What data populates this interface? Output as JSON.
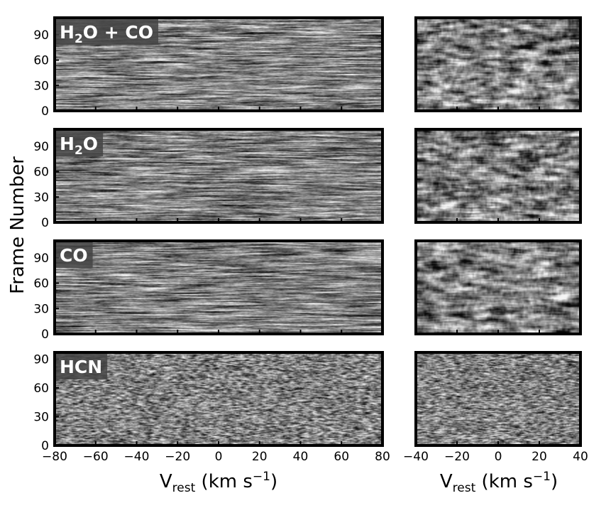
{
  "chart_data": [
    {
      "type": "heatmap",
      "label": {
        "main": "H",
        "sub": "2",
        "rest": "O + CO"
      },
      "x": {
        "range": [
          -80,
          80
        ],
        "ticks": [
          -80,
          -60,
          -40,
          -20,
          0,
          20,
          40,
          60,
          80
        ],
        "show_tick_labels": false
      },
      "y": {
        "range": [
          0,
          110
        ],
        "ticks": [
          0,
          30,
          60,
          90
        ]
      },
      "frames": 110,
      "colormap": "gray",
      "texture": "streaky",
      "seed": 11
    },
    {
      "type": "heatmap",
      "label": {
        "main": "H",
        "sub": "2",
        "rest": "O"
      },
      "x": {
        "range": [
          -80,
          80
        ],
        "ticks": [
          -80,
          -60,
          -40,
          -20,
          0,
          20,
          40,
          60,
          80
        ],
        "show_tick_labels": false
      },
      "y": {
        "range": [
          0,
          110
        ],
        "ticks": [
          0,
          30,
          60,
          90
        ]
      },
      "frames": 110,
      "colormap": "gray",
      "texture": "streaky",
      "seed": 23
    },
    {
      "type": "heatmap",
      "label": {
        "main": "CO",
        "sub": "",
        "rest": ""
      },
      "x": {
        "range": [
          -80,
          80
        ],
        "ticks": [
          -80,
          -60,
          -40,
          -20,
          0,
          20,
          40,
          60,
          80
        ],
        "show_tick_labels": false
      },
      "y": {
        "range": [
          0,
          110
        ],
        "ticks": [
          0,
          30,
          60,
          90
        ]
      },
      "frames": 110,
      "colormap": "gray",
      "texture": "streaky",
      "seed": 37
    },
    {
      "type": "heatmap",
      "label": {
        "main": "HCN",
        "sub": "",
        "rest": ""
      },
      "x": {
        "range": [
          -80,
          80
        ],
        "ticks": [
          -80,
          -60,
          -40,
          -20,
          0,
          20,
          40,
          60,
          80
        ],
        "tick_labels": [
          "−80",
          "−60",
          "−40",
          "−20",
          "0",
          "20",
          "40",
          "60",
          "80"
        ],
        "show_tick_labels": true
      },
      "y": {
        "range": [
          0,
          97
        ],
        "ticks": [
          0,
          30,
          60,
          90
        ]
      },
      "frames": 97,
      "colormap": "gray",
      "texture": "grainy",
      "seed": 41
    },
    {
      "type": "heatmap",
      "label": null,
      "x": {
        "range": [
          -40,
          40
        ],
        "ticks": [
          -40,
          -20,
          0,
          20,
          40
        ],
        "show_tick_labels": false
      },
      "y": {
        "range": [
          0,
          110
        ],
        "ticks": [],
        "show_tick_labels": false
      },
      "frames": 110,
      "colormap": "gray",
      "texture": "blobby",
      "seed": 53
    },
    {
      "type": "heatmap",
      "label": null,
      "x": {
        "range": [
          -40,
          40
        ],
        "ticks": [
          -40,
          -20,
          0,
          20,
          40
        ],
        "show_tick_labels": false
      },
      "y": {
        "range": [
          0,
          110
        ],
        "ticks": [],
        "show_tick_labels": false
      },
      "frames": 110,
      "colormap": "gray",
      "texture": "blobby",
      "seed": 67
    },
    {
      "type": "heatmap",
      "label": null,
      "x": {
        "range": [
          -40,
          40
        ],
        "ticks": [
          -40,
          -20,
          0,
          20,
          40
        ],
        "show_tick_labels": false
      },
      "y": {
        "range": [
          0,
          110
        ],
        "ticks": [],
        "show_tick_labels": false
      },
      "frames": 110,
      "colormap": "gray",
      "texture": "blobby",
      "seed": 71
    },
    {
      "type": "heatmap",
      "label": null,
      "x": {
        "range": [
          -40,
          40
        ],
        "ticks": [
          -40,
          -20,
          0,
          20,
          40
        ],
        "tick_labels": [
          "−40",
          "−20",
          "0",
          "20",
          "40"
        ],
        "show_tick_labels": true
      },
      "y": {
        "range": [
          0,
          97
        ],
        "ticks": [],
        "show_tick_labels": false
      },
      "frames": 97,
      "colormap": "gray",
      "texture": "grainy",
      "seed": 83
    }
  ],
  "ytick_labels": [
    "0",
    "30",
    "60",
    "90"
  ],
  "ylabel": "Frame Number",
  "xlabel": {
    "main": "V",
    "sub": "rest",
    "unit": " (km s",
    "sup": "−1",
    "close": ")"
  }
}
